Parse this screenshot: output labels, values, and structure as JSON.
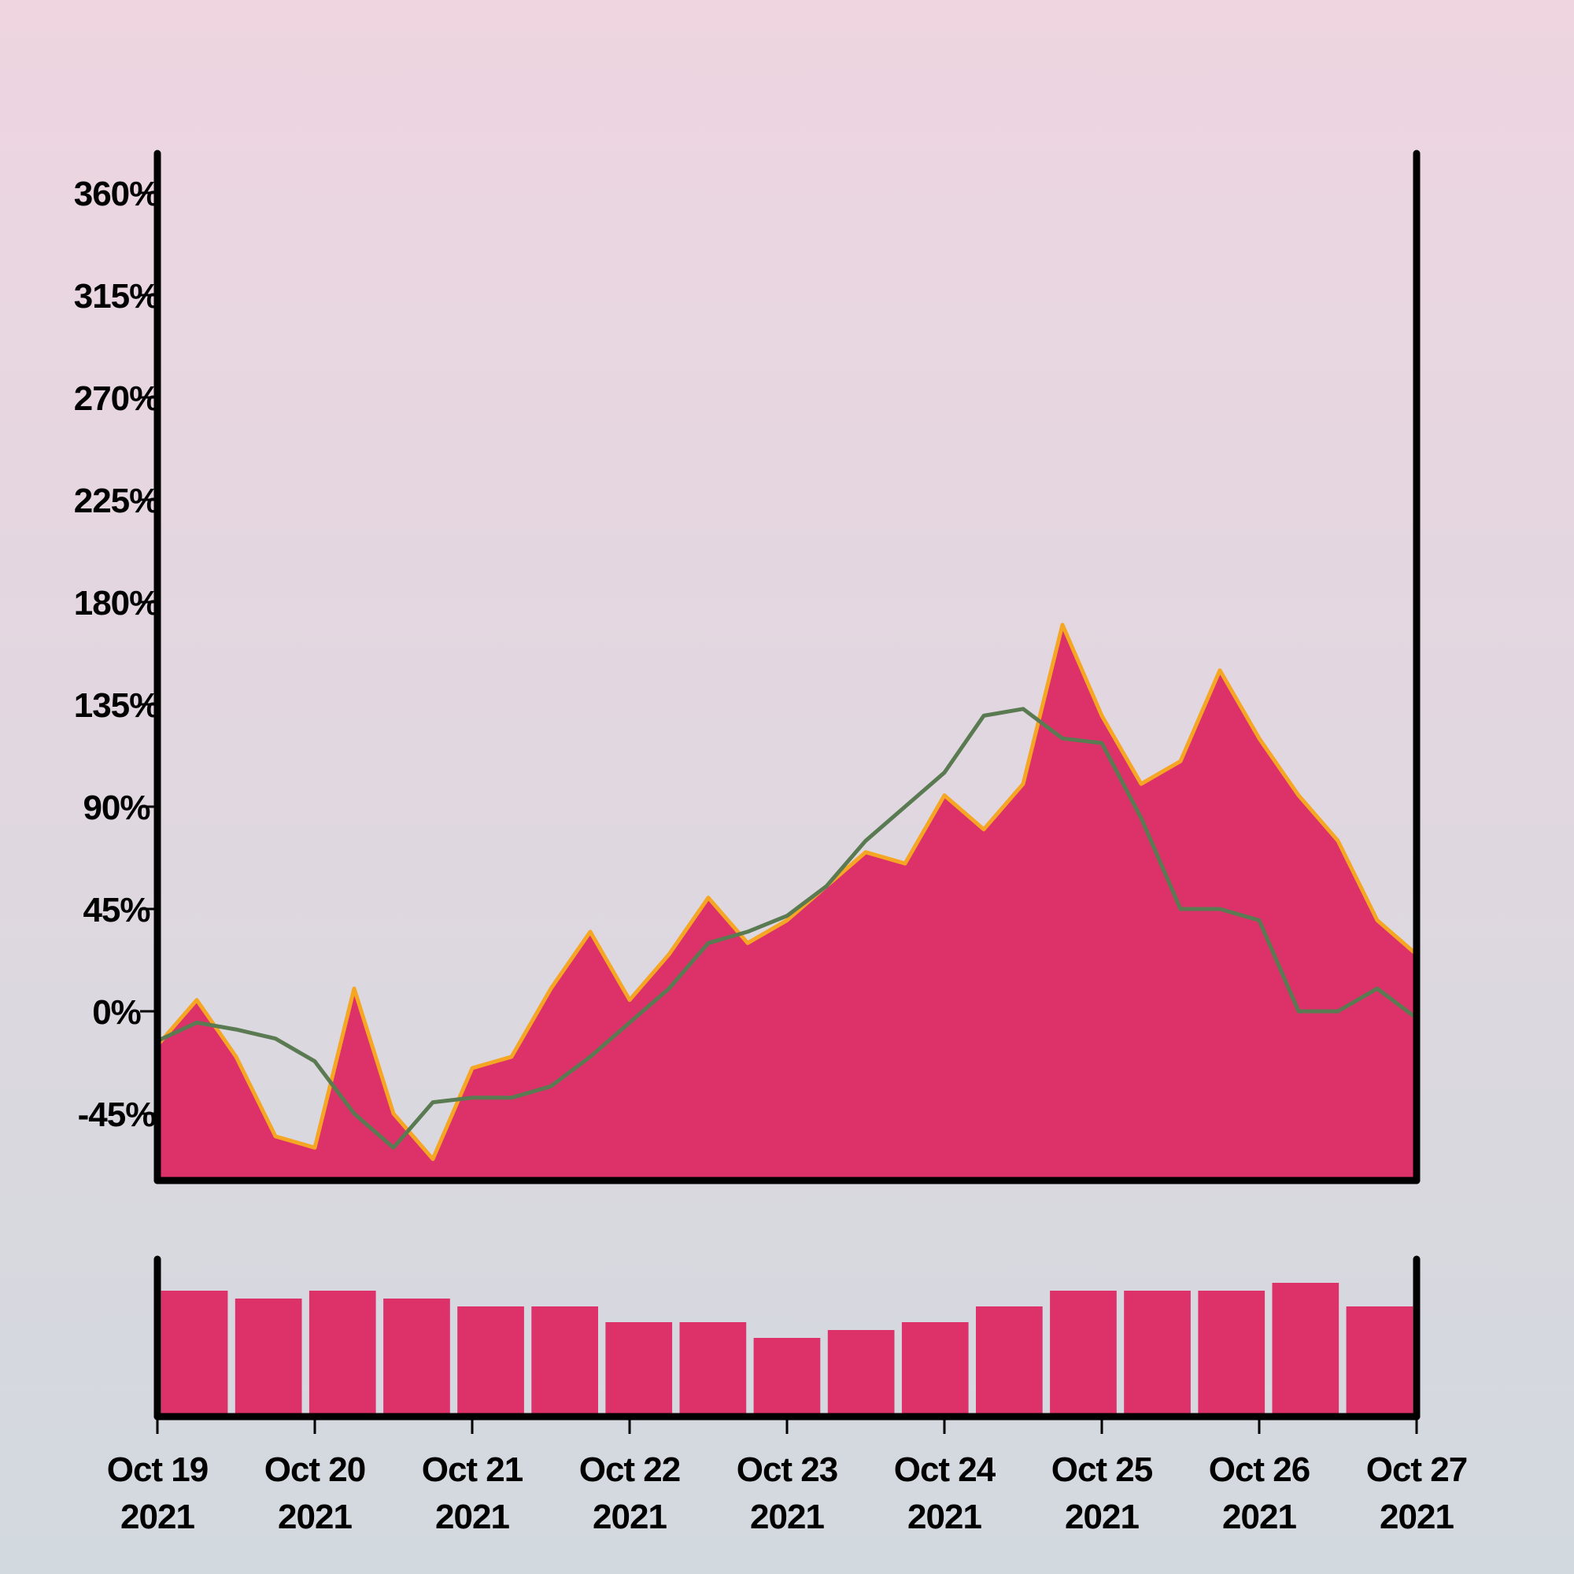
{
  "colors": {
    "background_top": "#eed5e0",
    "background_bottom": "#d2d9df",
    "area_fill": "#dc3169",
    "area_stroke": "#f5a623",
    "ma_line": "#5a7a52",
    "volume_fill": "#dc3169",
    "axis": "#000000"
  },
  "chart_data": [
    {
      "type": "area",
      "title": "",
      "xlabel": "",
      "ylabel": "",
      "ylim": [
        -65,
        375
      ],
      "y_ticks": [
        "-45%",
        "0%",
        "45%",
        "90%",
        "135%",
        "180%",
        "225%",
        "270%",
        "315%",
        "360%"
      ],
      "y_tick_values": [
        -45,
        0,
        45,
        90,
        135,
        180,
        225,
        270,
        315,
        360
      ],
      "x_ticks": [
        {
          "date": "2021-10-19",
          "line1": "Oct 19",
          "line2": "2021"
        },
        {
          "date": "2021-10-20",
          "line1": "Oct 20",
          "line2": "2021"
        },
        {
          "date": "2021-10-21",
          "line1": "Oct 21",
          "line2": "2021"
        },
        {
          "date": "2021-10-22",
          "line1": "Oct 22",
          "line2": "2021"
        },
        {
          "date": "2021-10-23",
          "line1": "Oct 23",
          "line2": "2021"
        },
        {
          "date": "2021-10-24",
          "line1": "Oct 24",
          "line2": "2021"
        },
        {
          "date": "2021-10-25",
          "line1": "Oct 25",
          "line2": "2021"
        },
        {
          "date": "2021-10-26",
          "line1": "Oct 26",
          "line2": "2021"
        },
        {
          "date": "2021-10-27",
          "line1": "Oct 27",
          "line2": "2021"
        }
      ],
      "xlim": [
        "2021-10-19T00:00",
        "2021-10-27T00:00"
      ],
      "series": [
        {
          "kind": "area",
          "x": [
            "2021-10-19T00:00",
            "2021-10-19T06:00",
            "2021-10-19T12:00",
            "2021-10-19T18:00",
            "2021-10-20T00:00",
            "2021-10-20T06:00",
            "2021-10-20T12:00",
            "2021-10-20T18:00",
            "2021-10-21T00:00",
            "2021-10-21T06:00",
            "2021-10-21T12:00",
            "2021-10-21T18:00",
            "2021-10-22T00:00",
            "2021-10-22T06:00",
            "2021-10-22T12:00",
            "2021-10-22T18:00",
            "2021-10-23T00:00",
            "2021-10-23T06:00",
            "2021-10-23T12:00",
            "2021-10-23T18:00",
            "2021-10-24T00:00",
            "2021-10-24T06:00",
            "2021-10-24T12:00",
            "2021-10-24T18:00",
            "2021-10-25T00:00",
            "2021-10-25T06:00",
            "2021-10-25T12:00",
            "2021-10-25T18:00",
            "2021-10-26T00:00",
            "2021-10-26T06:00",
            "2021-10-26T12:00",
            "2021-10-26T18:00",
            "2021-10-27T00:00"
          ],
          "values": [
            -15,
            5,
            -20,
            -55,
            -60,
            10,
            -45,
            -65,
            -25,
            -20,
            10,
            35,
            5,
            25,
            50,
            30,
            40,
            55,
            70,
            65,
            95,
            80,
            100,
            170,
            130,
            100,
            110,
            150,
            120,
            95,
            75,
            40,
            25
          ]
        },
        {
          "kind": "line",
          "x": [
            "2021-10-19T00:00",
            "2021-10-19T06:00",
            "2021-10-19T12:00",
            "2021-10-19T18:00",
            "2021-10-20T00:00",
            "2021-10-20T06:00",
            "2021-10-20T12:00",
            "2021-10-20T18:00",
            "2021-10-21T00:00",
            "2021-10-21T06:00",
            "2021-10-21T12:00",
            "2021-10-21T18:00",
            "2021-10-22T00:00",
            "2021-10-22T06:00",
            "2021-10-22T12:00",
            "2021-10-22T18:00",
            "2021-10-23T00:00",
            "2021-10-23T06:00",
            "2021-10-23T12:00",
            "2021-10-23T18:00",
            "2021-10-24T00:00",
            "2021-10-24T06:00",
            "2021-10-24T12:00",
            "2021-10-24T18:00",
            "2021-10-25T00:00",
            "2021-10-25T06:00",
            "2021-10-25T12:00",
            "2021-10-25T18:00",
            "2021-10-26T00:00",
            "2021-10-26T06:00",
            "2021-10-26T12:00",
            "2021-10-26T18:00",
            "2021-10-27T00:00"
          ],
          "values": [
            -13,
            -5,
            -8,
            -12,
            -22,
            -45,
            -60,
            -40,
            -38,
            -38,
            -33,
            -20,
            -5,
            10,
            30,
            35,
            42,
            55,
            75,
            90,
            105,
            130,
            133,
            120,
            118,
            85,
            45,
            45,
            40,
            0,
            0,
            10,
            -3
          ]
        }
      ]
    },
    {
      "type": "bar",
      "title": "",
      "x": [
        "2021-10-19T00:00",
        "2021-10-19T12:00",
        "2021-10-20T00:00",
        "2021-10-20T12:00",
        "2021-10-21T00:00",
        "2021-10-21T12:00",
        "2021-10-22T00:00",
        "2021-10-22T12:00",
        "2021-10-23T00:00",
        "2021-10-23T12:00",
        "2021-10-24T00:00",
        "2021-10-24T12:00",
        "2021-10-25T00:00",
        "2021-10-25T12:00",
        "2021-10-26T00:00",
        "2021-10-26T12:00",
        "2021-10-27T00:00"
      ],
      "values": [
        0.8,
        0.75,
        0.8,
        0.75,
        0.7,
        0.7,
        0.6,
        0.6,
        0.5,
        0.55,
        0.6,
        0.7,
        0.8,
        0.8,
        0.8,
        0.85,
        0.7
      ]
    }
  ]
}
